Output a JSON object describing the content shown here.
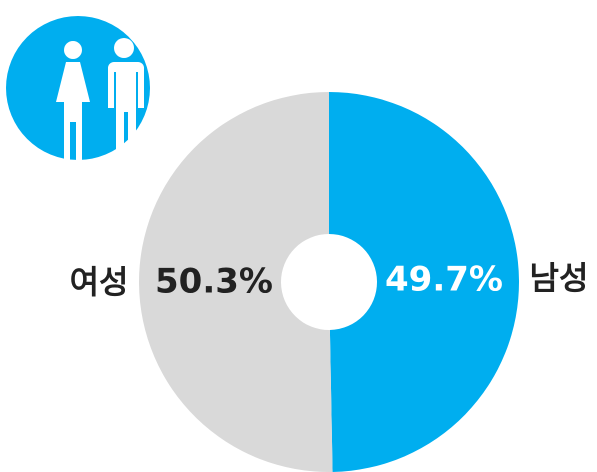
{
  "chart_data": {
    "type": "donut",
    "categories": [
      "남성",
      "여성"
    ],
    "values": [
      49.7,
      50.3
    ],
    "value_labels": [
      "49.7%",
      "50.3%"
    ],
    "colors": [
      "#00aeef",
      "#d9d9d9"
    ]
  }
}
